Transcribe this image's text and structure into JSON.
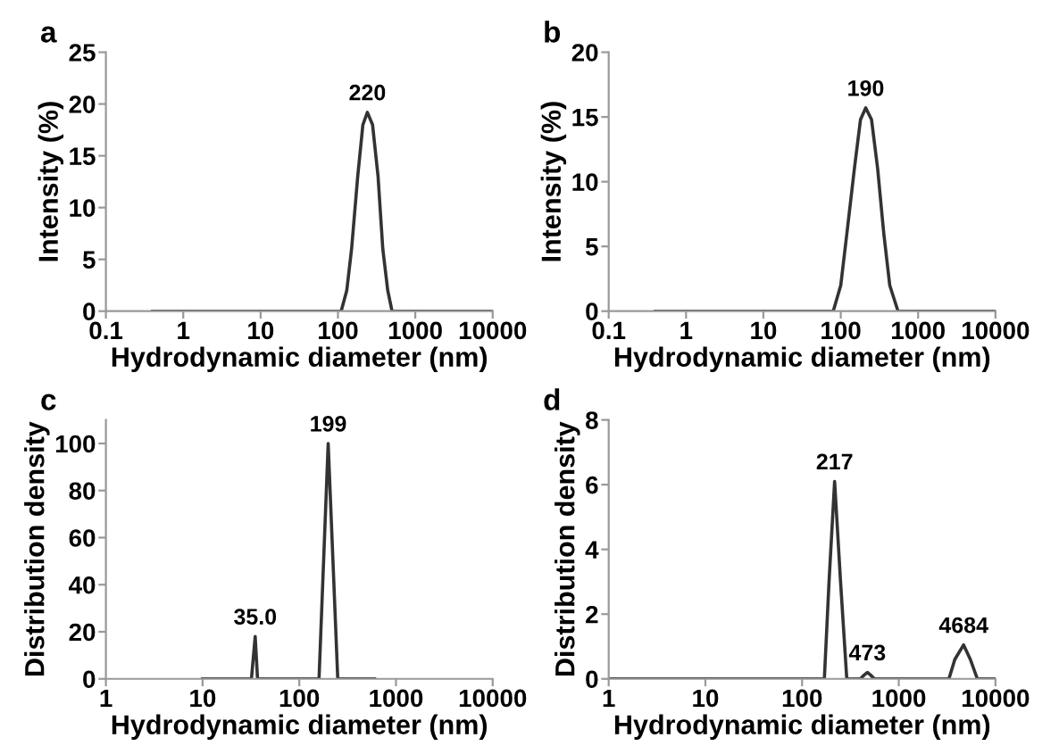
{
  "chart_data": [
    {
      "type": "line",
      "title": "a",
      "xlabel": "Hydrodynamic diameter (nm)",
      "ylabel": "Intensity (%)",
      "log": "x",
      "grid": false,
      "xlim": [
        0.1,
        10000
      ],
      "xticks": [
        0.1,
        1,
        10,
        100,
        1000,
        10000
      ],
      "ylim": [
        0,
        25
      ],
      "yticks": [
        0,
        5,
        10,
        15,
        20,
        25
      ],
      "series": [
        {
          "color": "#333333",
          "x": [
            0.4,
            110,
            130,
            150,
            180,
            210,
            240,
            280,
            330,
            380,
            440,
            500,
            10000
          ],
          "values": [
            0,
            0,
            2,
            6,
            13,
            18,
            19.2,
            18,
            13,
            6,
            2,
            0,
            0
          ]
        }
      ],
      "annotations": [
        {
          "text": "220",
          "x": 240,
          "y": 19.2
        }
      ]
    },
    {
      "type": "line",
      "title": "b",
      "xlabel": "Hydrodynamic diameter (nm)",
      "ylabel": "Intensity (%)",
      "log": "x",
      "grid": false,
      "xlim": [
        0.1,
        10000
      ],
      "xticks": [
        0.1,
        1,
        10,
        100,
        1000,
        10000
      ],
      "ylim": [
        0,
        20
      ],
      "yticks": [
        0,
        5,
        10,
        15,
        20
      ],
      "series": [
        {
          "color": "#333333",
          "x": [
            0.4,
            80,
            100,
            120,
            150,
            180,
            210,
            250,
            300,
            360,
            430,
            550,
            10000
          ],
          "values": [
            0,
            0,
            2,
            6,
            11,
            14.8,
            15.7,
            14.8,
            11,
            6,
            2,
            0,
            0
          ]
        }
      ],
      "annotations": [
        {
          "text": "190",
          "x": 210,
          "y": 15.7
        }
      ]
    },
    {
      "type": "line",
      "title": "c",
      "xlabel": "Hydrodynamic diameter (nm)",
      "ylabel": "Distribution density",
      "log": "x",
      "grid": false,
      "xlim": [
        1,
        10000
      ],
      "xticks": [
        1,
        10,
        100,
        1000,
        10000
      ],
      "ylim": [
        0,
        110
      ],
      "yticks": [
        0,
        20,
        40,
        60,
        80,
        100
      ],
      "series": [
        {
          "color": "#333333",
          "x": [
            10,
            32,
            35,
            37,
            160,
            199,
            250,
            600
          ],
          "values": [
            0,
            0,
            18,
            0,
            0,
            100,
            0,
            0
          ]
        }
      ],
      "annotations": [
        {
          "text": "35.0",
          "x": 35,
          "y": 18
        },
        {
          "text": "199",
          "x": 199,
          "y": 100
        }
      ]
    },
    {
      "type": "line",
      "title": "d",
      "xlabel": "Hydrodynamic diameter (nm)",
      "ylabel": "Distribution density",
      "log": "x",
      "grid": false,
      "xlim": [
        1,
        10000
      ],
      "xticks": [
        1,
        10,
        100,
        1000,
        10000
      ],
      "ylim": [
        0,
        8
      ],
      "yticks": [
        0,
        2,
        4,
        6,
        8
      ],
      "series": [
        {
          "color": "#333333",
          "x": [
            1,
            170,
            190,
            217,
            250,
            290,
            400,
            440,
            473,
            510,
            560,
            3300,
            3800,
            4684,
            5500,
            6500,
            10000
          ],
          "values": [
            0,
            0,
            3,
            6.1,
            3,
            0,
            0,
            0.12,
            0.2,
            0.12,
            0,
            0,
            0.6,
            1.05,
            0.6,
            0,
            0
          ]
        }
      ],
      "annotations": [
        {
          "text": "217",
          "x": 217,
          "y": 6.1
        },
        {
          "text": "473",
          "x": 473,
          "y": 0.2
        },
        {
          "text": "4684",
          "x": 4684,
          "y": 1.05
        }
      ]
    }
  ]
}
